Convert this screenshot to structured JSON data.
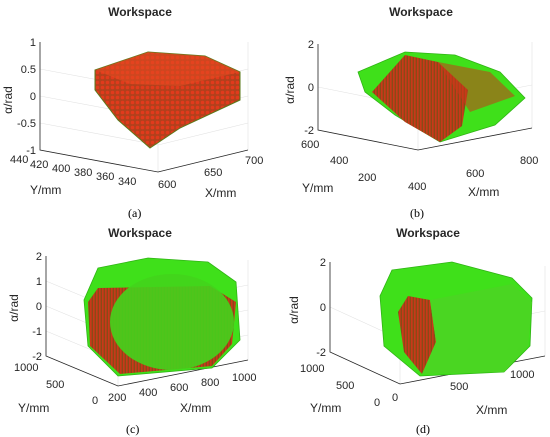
{
  "chart_data": [
    {
      "type": "scatter",
      "title": "Workspace",
      "caption": "(a)",
      "xlabel": "X/mm",
      "ylabel": "Y/mm",
      "zlabel": "α/rad",
      "x_ticks": [
        "600",
        "650",
        "700"
      ],
      "y_ticks": [
        "340",
        "360",
        "380",
        "400",
        "420",
        "440"
      ],
      "z_ticks": [
        "-1",
        "-0.5",
        "0",
        "0.5",
        "1"
      ],
      "xlim": [
        590,
        705
      ],
      "ylim": [
        335,
        445
      ],
      "zlim": [
        -1,
        1
      ],
      "colors": {
        "points": "#d8331a",
        "edge": "#5a7a1a"
      }
    },
    {
      "type": "scatter",
      "title": "Workspace",
      "caption": "(b)",
      "xlabel": "X/mm",
      "ylabel": "Y/mm",
      "zlabel": "α/rad",
      "x_ticks": [
        "400",
        "600",
        "800"
      ],
      "y_ticks": [
        "200",
        "400",
        "600"
      ],
      "z_ticks": [
        "-2",
        "0",
        "2"
      ],
      "xlim": [
        380,
        860
      ],
      "ylim": [
        180,
        640
      ],
      "zlim": [
        -2,
        2
      ],
      "colors": {
        "points": "#d8331a",
        "fill": "#3fe01a"
      }
    },
    {
      "type": "scatter",
      "title": "Workspace",
      "caption": "(c)",
      "xlabel": "X/mm",
      "ylabel": "Y/mm",
      "zlabel": "α/rad",
      "x_ticks": [
        "200",
        "400",
        "600",
        "800",
        "1000"
      ],
      "y_ticks": [
        "0",
        "500",
        "1000"
      ],
      "z_ticks": [
        "-2",
        "-1",
        "0",
        "1",
        "2"
      ],
      "xlim": [
        150,
        1050
      ],
      "ylim": [
        0,
        1050
      ],
      "zlim": [
        -2,
        2
      ],
      "colors": {
        "points": "#d8331a",
        "fill": "#3fe01a"
      }
    },
    {
      "type": "scatter",
      "title": "Workspace",
      "caption": "(d)",
      "xlabel": "X/mm",
      "ylabel": "Y/mm",
      "zlabel": "α/rad",
      "x_ticks": [
        "0",
        "500",
        "1000"
      ],
      "y_ticks": [
        "0",
        "500",
        "1000"
      ],
      "z_ticks": [
        "-2",
        "0",
        "2"
      ],
      "xlim": [
        0,
        1050
      ],
      "ylim": [
        0,
        1050
      ],
      "zlim": [
        -2,
        2
      ],
      "colors": {
        "points": "#d8331a",
        "fill": "#3fe01a"
      }
    }
  ]
}
